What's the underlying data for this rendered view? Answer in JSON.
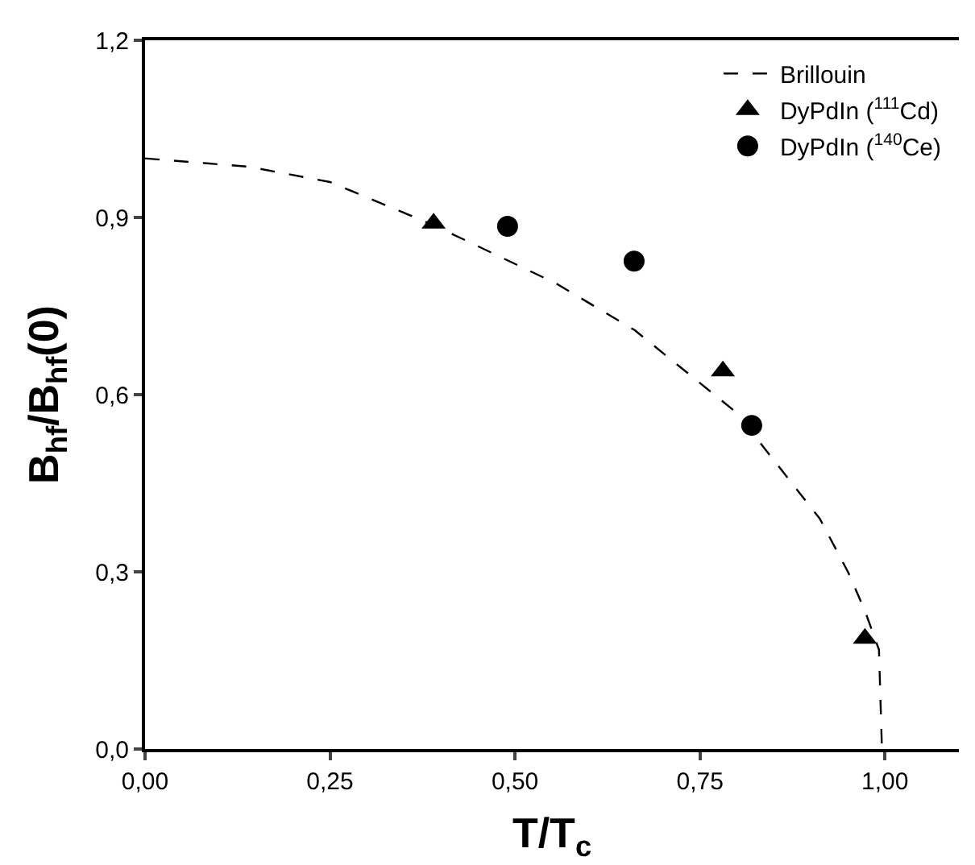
{
  "chart_data": {
    "type": "scatter",
    "xlabel": "T/T$_{c}$",
    "ylabel": "B$_{hf}$/B$_{hf}$(0)",
    "xlim": [
      0,
      1.1
    ],
    "ylim": [
      0,
      1.2
    ],
    "xticks": [
      {
        "value": 0,
        "label": "0,00"
      },
      {
        "value": 0.25,
        "label": "0,25"
      },
      {
        "value": 0.5,
        "label": "0,50"
      },
      {
        "value": 0.75,
        "label": "0,75"
      },
      {
        "value": 1,
        "label": "1,00"
      }
    ],
    "yticks": [
      {
        "value": 0,
        "label": "0,0"
      },
      {
        "value": 0.3,
        "label": "0,3"
      },
      {
        "value": 0.6,
        "label": "0,6"
      },
      {
        "value": 0.9,
        "label": "0,9"
      },
      {
        "value": 1.2,
        "label": "1,2"
      }
    ],
    "legend": "top right",
    "series": [
      {
        "name": "Brillouin",
        "type": "line",
        "color": "#000000",
        "line_style": "dashed",
        "marker": "none",
        "x": [
          0,
          0.14,
          0.25,
          0.39,
          0.556,
          0.662,
          0.799,
          0.912,
          0.95,
          0.973,
          0.992,
          0.996
        ],
        "values": [
          1.0,
          0.986,
          0.96,
          0.887,
          0.788,
          0.709,
          0.57,
          0.39,
          0.3,
          0.234,
          0.168,
          0
        ]
      },
      {
        "name": "DyPdIn ($^{111}$Cd)",
        "color": "#000000",
        "marker": "triangle",
        "x": [
          0.39,
          0.781,
          0.973
        ],
        "values": [
          0.89,
          0.64,
          0.187
        ]
      },
      {
        "name": "DyPdIn ($^{140}$Ce)",
        "color": "#000000",
        "marker": "circle",
        "x": [
          0.49,
          0.661,
          0.82
        ],
        "values": [
          0.885,
          0.826,
          0.548
        ]
      }
    ]
  }
}
